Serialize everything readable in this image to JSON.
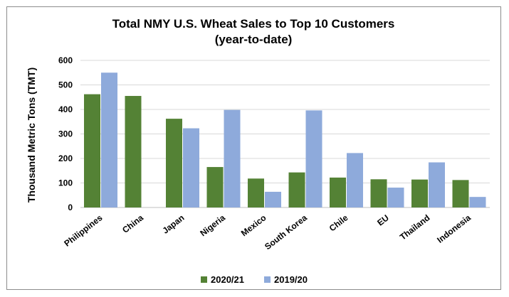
{
  "chart_data": {
    "type": "bar",
    "title": "Total NMY U.S. Wheat Sales to Top 10 Customers",
    "subtitle": "(year-to-date)",
    "xlabel": "",
    "ylabel": "Thousand Metric Tons (TMT)",
    "ylim": [
      0,
      600
    ],
    "yticks": [
      0,
      100,
      200,
      300,
      400,
      500,
      600
    ],
    "grid": true,
    "legend_position": "bottom",
    "categories": [
      "Philippines",
      "China",
      "Japan",
      "Nigeria",
      "Mexico",
      "South Korea",
      "Chile",
      "EU",
      "Thailand",
      "Indonesia"
    ],
    "series": [
      {
        "name": "2020/21",
        "color": "#548235",
        "values": [
          462,
          455,
          362,
          165,
          118,
          143,
          122,
          115,
          114,
          112
        ]
      },
      {
        "name": "2019/20",
        "color": "#8eaadb",
        "values": [
          550,
          0,
          323,
          398,
          64,
          396,
          222,
          81,
          184,
          43
        ]
      }
    ]
  }
}
